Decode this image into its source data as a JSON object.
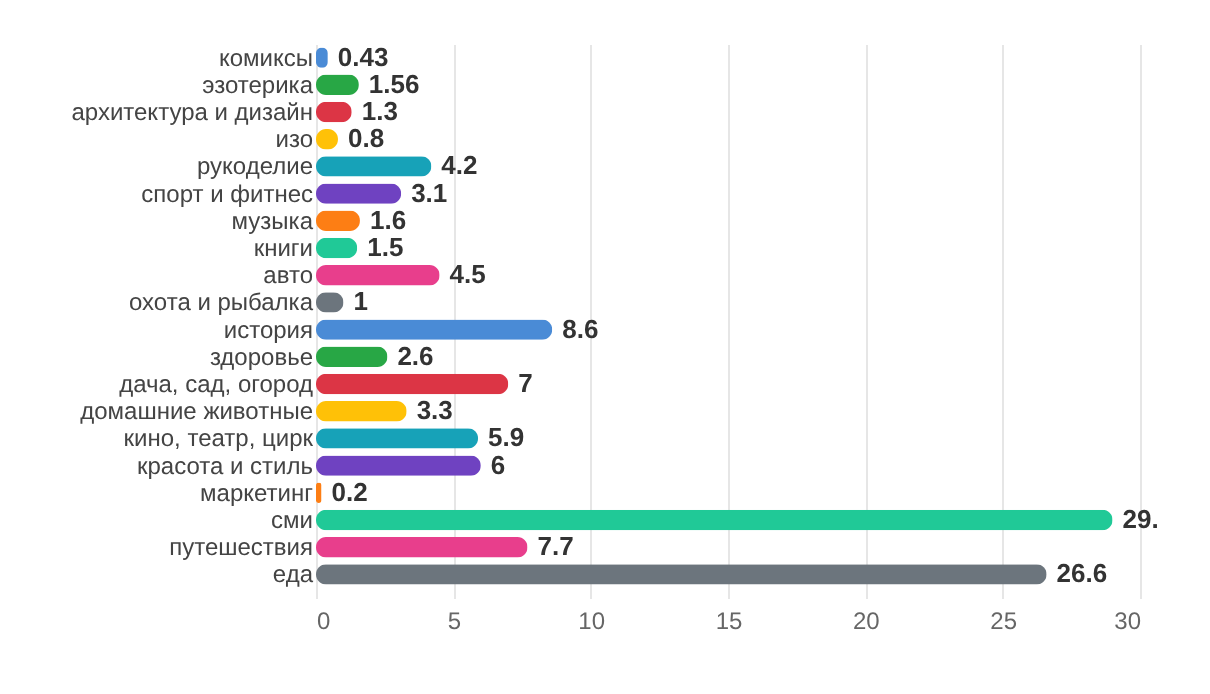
{
  "chart_data": {
    "type": "bar",
    "orientation": "horizontal",
    "categories": [
      "комиксы",
      "эзотерика",
      "архитектура и дизайн",
      "изо",
      "рукоделие",
      "спорт и фитнес",
      "музыка",
      "книги",
      "авто",
      "охота и рыбалка",
      "история",
      "здоровье",
      "дача, сад, огород",
      "домашние животные",
      "кино, театр, цирк",
      "красота и стиль",
      "маркетинг",
      "сми",
      "путешествия",
      "еда"
    ],
    "values": [
      0.43,
      1.56,
      1.3,
      0.8,
      4.2,
      3.1,
      1.6,
      1.5,
      4.5,
      1,
      8.6,
      2.6,
      7,
      3.3,
      5.9,
      6,
      0.2,
      29,
      7.7,
      26.6
    ],
    "value_labels": [
      "0.43",
      "1.56",
      "1.3",
      "0.8",
      "4.2",
      "3.1",
      "1.6",
      "1.5",
      "4.5",
      "1",
      "8.6",
      "2.6",
      "7",
      "3.3",
      "5.9",
      "6",
      "0.2",
      "29.",
      "7.7",
      "26.6"
    ],
    "colors": [
      "#4a8bd6",
      "#28a745",
      "#dc3545",
      "#ffc107",
      "#17a2b8",
      "#6f42c1",
      "#fd7e14",
      "#20c997",
      "#e83e8c",
      "#6c757d",
      "#4a8bd6",
      "#28a745",
      "#dc3545",
      "#ffc107",
      "#17a2b8",
      "#6f42c1",
      "#fd7e14",
      "#20c997",
      "#e83e8c",
      "#6c757d"
    ],
    "xlim": [
      0,
      30
    ],
    "xticks": [
      0,
      5,
      10,
      15,
      20,
      25,
      30
    ],
    "grid": "x"
  }
}
